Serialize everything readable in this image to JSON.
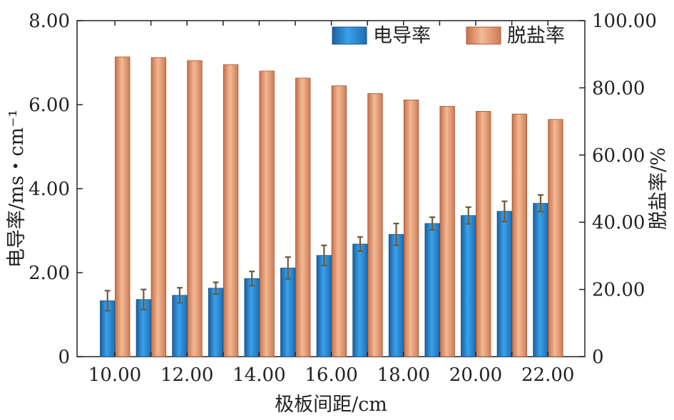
{
  "chart_data": {
    "type": "bar",
    "categories": [
      "10.00",
      "11.00",
      "12.00",
      "13.00",
      "14.00",
      "15.00",
      "16.00",
      "17.00",
      "18.00",
      "19.00",
      "20.00",
      "21.00",
      "22.00"
    ],
    "x_tick_labels": [
      "10.00",
      "12.00",
      "14.00",
      "16.00",
      "18.00",
      "20.00",
      "22.00"
    ],
    "xlabel": "极板间距/cm",
    "ylabel_left": "电导率/ms・cm⁻¹",
    "ylabel_right": "脱盐率/%",
    "ylim_left": [
      0,
      8
    ],
    "ylim_right": [
      0,
      100
    ],
    "y_ticks_left": [
      "0",
      "2.00",
      "4.00",
      "6.00",
      "8.00"
    ],
    "y_ticks_right": [
      "0",
      "20.00",
      "40.00",
      "60.00",
      "80.00",
      "100.00"
    ],
    "legend_position": "top-right",
    "series": [
      {
        "name": "电导率",
        "axis": "left",
        "color": "#2b8fd6",
        "values": [
          1.33,
          1.36,
          1.46,
          1.63,
          1.86,
          2.11,
          2.41,
          2.68,
          2.91,
          3.17,
          3.36,
          3.46,
          3.65
        ],
        "errors": [
          0.24,
          0.24,
          0.18,
          0.14,
          0.17,
          0.26,
          0.24,
          0.17,
          0.26,
          0.15,
          0.2,
          0.24,
          0.2
        ]
      },
      {
        "name": "脱盐率",
        "axis": "right",
        "color": "#e9a17c",
        "values": [
          89.2,
          89.0,
          88.1,
          86.9,
          85.0,
          82.9,
          80.6,
          78.3,
          76.4,
          74.5,
          73.0,
          72.2,
          70.6
        ]
      }
    ]
  }
}
